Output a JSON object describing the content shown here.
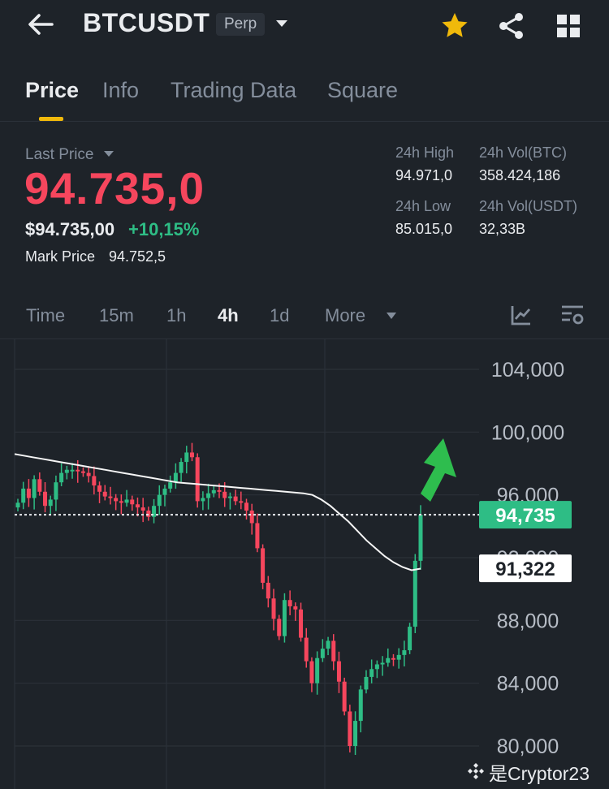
{
  "header": {
    "symbol": "BTCUSDT",
    "contract_type": "Perp",
    "icons": {
      "back": "arrow-left-icon",
      "dropdown": "caret-down-icon",
      "favorite": "star-icon",
      "share": "share-icon",
      "menu": "grid-icon"
    },
    "favorite_color": "#f0b90b"
  },
  "tabs": [
    {
      "label": "Price",
      "active": true
    },
    {
      "label": "Info",
      "active": false
    },
    {
      "label": "Trading Data",
      "active": false
    },
    {
      "label": "Square",
      "active": false
    }
  ],
  "ticker": {
    "last_price_label": "Last Price",
    "last_price": "94.735,0",
    "usd_price": "$94.735,00",
    "change_pct": "+10,15%",
    "mark_price_label": "Mark Price",
    "mark_price": "94.752,5",
    "stats": {
      "high_label": "24h High",
      "high": "94.971,0",
      "vol_btc_label": "24h Vol(BTC)",
      "vol_btc": "358.424,186",
      "low_label": "24h Low",
      "low": "85.015,0",
      "vol_usdt_label": "24h Vol(USDT)",
      "vol_usdt": "32,33B"
    },
    "colors": {
      "down": "#f6465d",
      "up": "#2ebd85"
    }
  },
  "intervals": {
    "items": [
      "Time",
      "15m",
      "1h",
      "4h",
      "1d",
      "More"
    ],
    "active": "4h",
    "icons": [
      "chart-indicator-icon",
      "chart-settings-icon"
    ]
  },
  "chart_data": {
    "type": "candlestick",
    "y_axis_ticks": [
      "104,000",
      "100,000",
      "96,000",
      "92,000",
      "88,000",
      "84,000",
      "80,000"
    ],
    "ylim": [
      79000,
      105000
    ],
    "current_price_label": "94,735",
    "current_price": 94735,
    "moving_average_label": "91,322",
    "moving_average_value": 91322,
    "annotation": "green upward arrow",
    "closes": [
      95500,
      96400,
      95800,
      97000,
      96200,
      95300,
      95700,
      96800,
      97400,
      97600,
      97600,
      97500,
      97400,
      97200,
      96600,
      96200,
      95900,
      95800,
      95600,
      95500,
      95700,
      95400,
      95200,
      95000,
      94600,
      95300,
      96000,
      96400,
      96800,
      97400,
      98100,
      98700,
      98400,
      95600,
      95800,
      96100,
      96300,
      96200,
      95800,
      95900,
      95600,
      95500,
      95000,
      94200,
      92600,
      90400,
      89400,
      88100,
      87000,
      89300,
      88900,
      88700,
      86900,
      85400,
      84000,
      85600,
      86200,
      86700,
      85400,
      84100,
      82200,
      80000,
      81600,
      83600,
      84400,
      84900,
      85200,
      85300,
      85600,
      85500,
      85800,
      86100,
      87600,
      91800,
      94735
    ],
    "ma": [
      98600,
      98500,
      98400,
      98300,
      98200,
      98100,
      98000,
      97900,
      97800,
      97700,
      97600,
      97500,
      97400,
      97300,
      97200,
      97100,
      97000,
      96900,
      96800,
      96750,
      96700,
      96650,
      96600,
      96550,
      96500,
      96450,
      96400,
      96350,
      96300,
      96250,
      96200,
      96150,
      96100,
      96000,
      95700,
      95300,
      94800,
      94300,
      93700,
      93100,
      92600,
      92100,
      91700,
      91400,
      91200,
      91300
    ]
  },
  "watermark": {
    "text": "是Cryptor23",
    "logo": "binance-logo-icon"
  }
}
